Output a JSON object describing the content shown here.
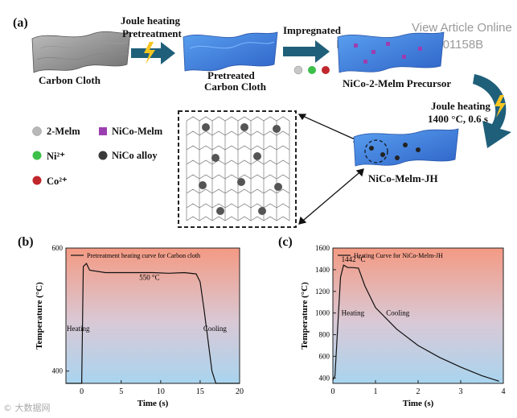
{
  "watermark": {
    "line1": "View Article Online",
    "line2": "DOI: 10.1039/D5SE01158B"
  },
  "top_left_badge": "© 大数据网",
  "figure": {
    "panel_a": {
      "label": "(a)",
      "carbon_cloth": "Carbon Cloth",
      "arrow1_line1": "Joule heating",
      "arrow1_line2": "Pretreatment",
      "pretreated_line1": "Pretreated",
      "pretreated_line2": "Carbon Cloth",
      "arrow2": "Impregnated",
      "precursor": "NiCo-2-Melm Precursor",
      "arrow3_line1": "Joule heating",
      "arrow3_line2": "1400 °C, 0.6 s",
      "product": "NiCo-Melm-JH",
      "legend": [
        {
          "label": "2-Melm",
          "color": "#b8b8b8",
          "icon": "sphere-icon"
        },
        {
          "label": "NiCo-Melm",
          "color": "#9b3fb0",
          "icon": "cube-icon"
        },
        {
          "label": "Ni²⁺",
          "color": "#3cc04a",
          "icon": "sphere-icon"
        },
        {
          "label": "NiCo alloy",
          "color": "#3a3a3a",
          "icon": "sphere-icon"
        },
        {
          "label": "Co²⁺",
          "color": "#c0272d",
          "icon": "sphere-icon"
        }
      ]
    },
    "panel_b": {
      "label": "(b)",
      "chart_data": {
        "type": "line",
        "title": "",
        "legend": "Pretreatment heating curve for Carbon cloth",
        "xlabel": "Time (s)",
        "ylabel": "Temperature (°C)",
        "xlim": [
          -2,
          20
        ],
        "ylim": [
          380,
          600
        ],
        "xticks": [
          0,
          5,
          10,
          15,
          20
        ],
        "yticks": [
          400,
          600
        ],
        "annotations": [
          "550 °C",
          "Heating",
          "Cooling"
        ],
        "series": [
          {
            "name": "Pretreatment heating curve for Carbon cloth",
            "x": [
              -2,
              0,
              0.2,
              0.6,
              1,
              3,
              5,
              7,
              9,
              11,
              13,
              14.5,
              15,
              15.5,
              16,
              16.5,
              17,
              20
            ],
            "y": [
              380,
              380,
              570,
              575,
              564,
              560,
              560,
              560,
              560,
              559,
              560,
              558,
              545,
              500,
              450,
              400,
              380,
              380
            ]
          }
        ]
      }
    },
    "panel_c": {
      "label": "(c)",
      "chart_data": {
        "type": "line",
        "title": "",
        "legend": "Heating Curve for NiCo-Melm-JH",
        "xlabel": "Time (s)",
        "ylabel": "Temperature (°C)",
        "xlim": [
          0,
          4
        ],
        "ylim": [
          350,
          1600
        ],
        "xticks": [
          0,
          1,
          2,
          3,
          4
        ],
        "yticks": [
          400,
          600,
          800,
          1000,
          1200,
          1400,
          1600
        ],
        "annotations": [
          "1442 °C",
          "Heating",
          "Cooling"
        ],
        "series": [
          {
            "name": "Heating Curve for NiCo-Melm-JH",
            "x": [
              0,
              0.05,
              0.18,
              0.25,
              0.35,
              0.45,
              0.6,
              0.75,
              1.0,
              1.5,
              2.0,
              2.5,
              3.0,
              3.5,
              3.9
            ],
            "y": [
              380,
              420,
              1330,
              1442,
              1420,
              1420,
              1415,
              1250,
              1050,
              850,
              700,
              590,
              500,
              420,
              370
            ]
          }
        ]
      }
    }
  }
}
